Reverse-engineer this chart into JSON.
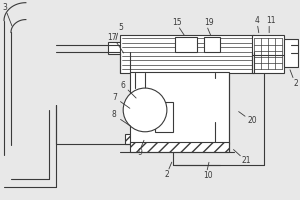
{
  "bg_color": "#e8e8e8",
  "line_color": "#3a3a3a",
  "lw": 0.8,
  "fs": 5.5
}
